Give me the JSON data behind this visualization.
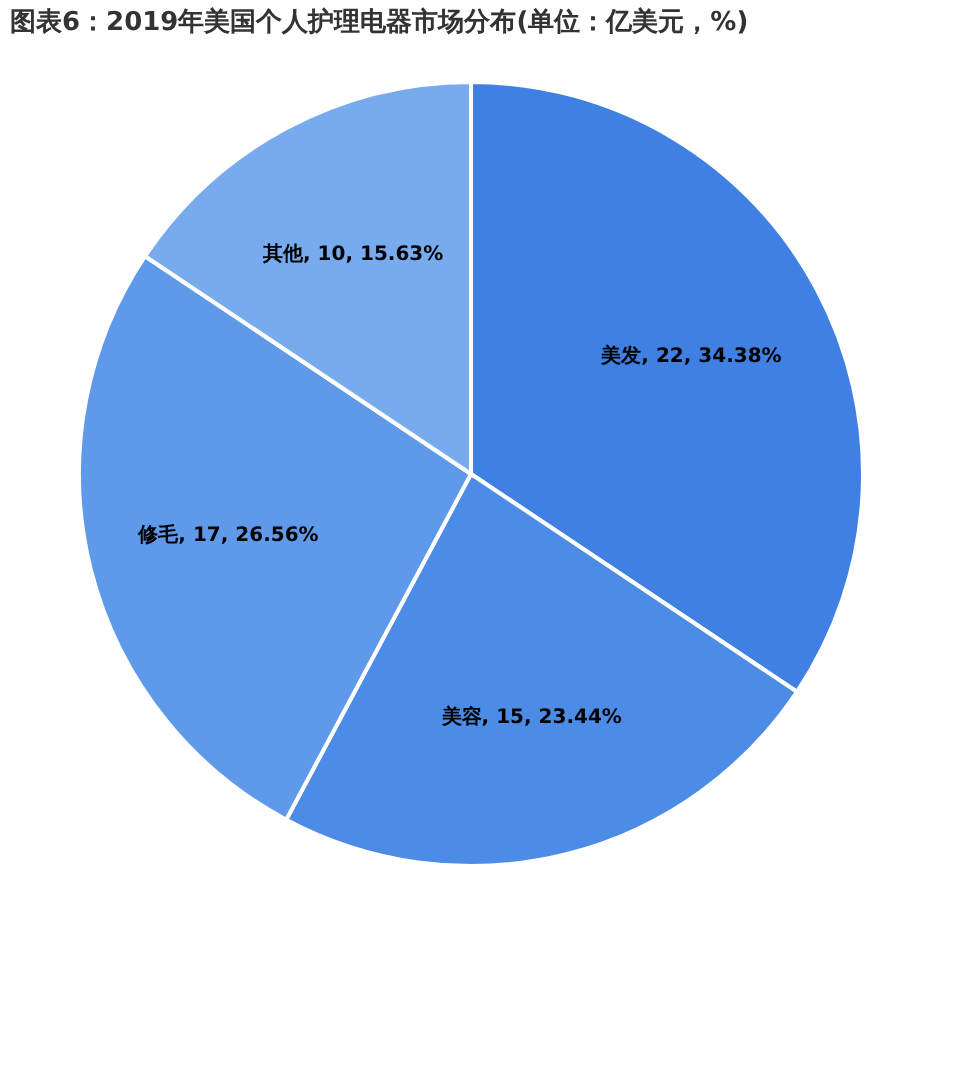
{
  "chart_data": {
    "type": "pie",
    "title": "图表6：2019年美国个人护理电器市场分布(单位：亿美元，%)",
    "categories": [
      "美发",
      "美容",
      "修毛",
      "其他"
    ],
    "values": [
      22,
      15,
      17,
      10
    ],
    "value_labels": [
      "22, 34.38%",
      "15, 23.44%",
      "17, 26.56%",
      "10, 15.63%"
    ],
    "colors": [
      "#3f80e2",
      "#4d8ce6",
      "#5f99ea",
      "#78aaee"
    ],
    "legend": false
  }
}
